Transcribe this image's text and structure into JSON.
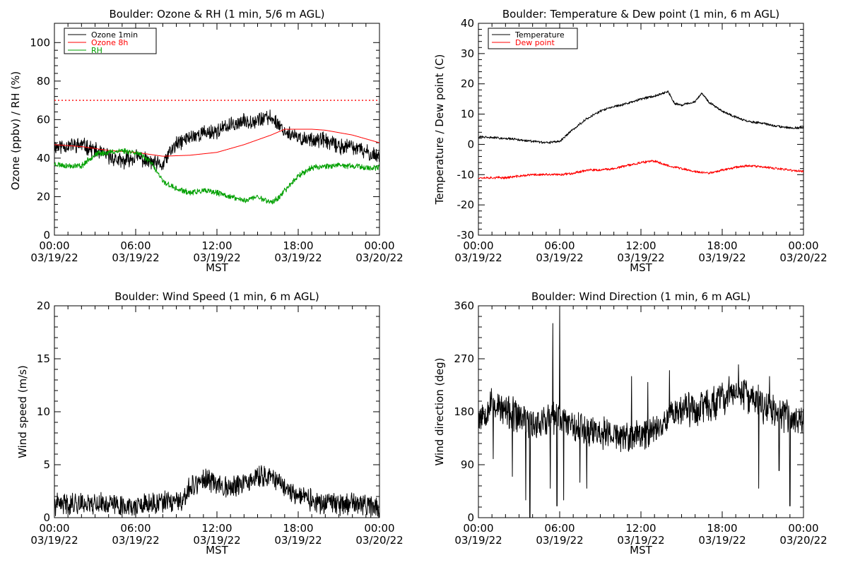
{
  "chart_data": [
    {
      "id": "ozone",
      "type": "line",
      "title": "Boulder: Ozone & RH (1 min, 5/6 m AGL)",
      "xlabel": "MST",
      "ylabel": "Ozone (ppbv) / RH (%)",
      "xlim": [
        "03/19/22 00:00",
        "03/20/22 00:00"
      ],
      "ylim": [
        0,
        110
      ],
      "yticks": [
        0,
        20,
        40,
        60,
        80,
        100
      ],
      "xticks": [
        {
          "time": "00:00",
          "date": "03/19/22"
        },
        {
          "time": "06:00",
          "date": "03/19/22"
        },
        {
          "time": "12:00",
          "date": "03/19/22"
        },
        {
          "time": "18:00",
          "date": "03/19/22"
        },
        {
          "time": "00:00",
          "date": "03/20/22"
        }
      ],
      "legend_position": "top-left",
      "reference_lines": [
        {
          "y": 70,
          "color": "#ff0000",
          "style": "dotted"
        }
      ],
      "series": [
        {
          "name": "Ozone 1min",
          "color": "#000000",
          "noise": 3.5,
          "seed": 11,
          "points": [
            [
              0,
              46
            ],
            [
              2,
              47
            ],
            [
              3,
              44
            ],
            [
              4,
              41
            ],
            [
              5,
              38
            ],
            [
              6,
              41
            ],
            [
              7,
              38
            ],
            [
              8,
              36
            ],
            [
              8.5,
              43
            ],
            [
              9,
              47
            ],
            [
              10,
              51
            ],
            [
              11,
              53
            ],
            [
              12,
              54
            ],
            [
              13,
              57
            ],
            [
              14,
              59
            ],
            [
              15,
              60
            ],
            [
              16,
              61
            ],
            [
              16.5,
              58
            ],
            [
              17,
              54
            ],
            [
              18,
              50
            ],
            [
              19,
              50
            ],
            [
              20,
              49
            ],
            [
              21,
              46
            ],
            [
              22,
              46
            ],
            [
              23,
              43
            ],
            [
              24,
              41
            ]
          ]
        },
        {
          "name": "Ozone 8h",
          "color": "#ff0000",
          "noise": 0,
          "seed": 1,
          "points": [
            [
              0,
              47
            ],
            [
              2,
              46
            ],
            [
              4,
              44
            ],
            [
              6,
              43
            ],
            [
              8,
              41
            ],
            [
              10,
              41.5
            ],
            [
              12,
              43
            ],
            [
              14,
              47
            ],
            [
              16,
              52
            ],
            [
              17,
              55
            ],
            [
              18,
              55
            ],
            [
              19,
              55
            ],
            [
              20,
              54.5
            ],
            [
              22,
              52
            ],
            [
              24,
              48
            ]
          ]
        },
        {
          "name": "RH",
          "color": "#00a000",
          "noise": 1.3,
          "seed": 23,
          "points": [
            [
              0,
              37
            ],
            [
              1,
              36
            ],
            [
              2,
              36
            ],
            [
              3,
              42
            ],
            [
              4,
              43
            ],
            [
              5,
              44
            ],
            [
              6,
              43
            ],
            [
              7,
              39
            ],
            [
              8,
              28
            ],
            [
              9,
              24
            ],
            [
              10,
              22
            ],
            [
              11,
              23
            ],
            [
              12,
              22
            ],
            [
              13,
              20
            ],
            [
              14,
              18
            ],
            [
              15,
              20
            ],
            [
              16,
              17
            ],
            [
              16.5,
              19
            ],
            [
              17,
              23
            ],
            [
              18,
              31
            ],
            [
              19,
              35
            ],
            [
              20,
              36
            ],
            [
              21,
              36
            ],
            [
              22,
              36
            ],
            [
              23,
              35
            ],
            [
              24,
              35
            ]
          ]
        }
      ]
    },
    {
      "id": "temperature",
      "type": "line",
      "title": "Boulder: Temperature & Dew point (1 min, 6 m AGL)",
      "xlabel": "MST",
      "ylabel": "Temperature / Dew point (C)",
      "xlim": [
        "03/19/22 00:00",
        "03/20/22 00:00"
      ],
      "ylim": [
        -30,
        40
      ],
      "yticks": [
        -30,
        -20,
        -10,
        0,
        10,
        20,
        30,
        40
      ],
      "xticks": [
        {
          "time": "00:00",
          "date": "03/19/22"
        },
        {
          "time": "06:00",
          "date": "03/19/22"
        },
        {
          "time": "12:00",
          "date": "03/19/22"
        },
        {
          "time": "18:00",
          "date": "03/19/22"
        },
        {
          "time": "00:00",
          "date": "03/20/22"
        }
      ],
      "legend_position": "top-left",
      "reference_lines": [],
      "series": [
        {
          "name": "Temperature",
          "color": "#000000",
          "noise": 0.35,
          "seed": 31,
          "points": [
            [
              0,
              2.5
            ],
            [
              2,
              2
            ],
            [
              4,
              1
            ],
            [
              5,
              0.5
            ],
            [
              6,
              1
            ],
            [
              7,
              5
            ],
            [
              8,
              8.5
            ],
            [
              9,
              11
            ],
            [
              10,
              12.5
            ],
            [
              11,
              13.5
            ],
            [
              12,
              15
            ],
            [
              13,
              16
            ],
            [
              14,
              17.5
            ],
            [
              14.5,
              13.5
            ],
            [
              15,
              13
            ],
            [
              16,
              14
            ],
            [
              16.5,
              17
            ],
            [
              17,
              14
            ],
            [
              18,
              11
            ],
            [
              19,
              9
            ],
            [
              20,
              7.5
            ],
            [
              21,
              7
            ],
            [
              22,
              6
            ],
            [
              23,
              5.5
            ],
            [
              24,
              5.5
            ]
          ]
        },
        {
          "name": "Dew point",
          "color": "#ff0000",
          "noise": 0.35,
          "seed": 37,
          "points": [
            [
              0,
              -11
            ],
            [
              1,
              -11
            ],
            [
              2,
              -11
            ],
            [
              3,
              -10.5
            ],
            [
              4,
              -10
            ],
            [
              5,
              -10
            ],
            [
              6,
              -10
            ],
            [
              7,
              -9.5
            ],
            [
              8,
              -8.5
            ],
            [
              9,
              -8.5
            ],
            [
              10,
              -8
            ],
            [
              11,
              -7
            ],
            [
              12,
              -6
            ],
            [
              13,
              -5.5
            ],
            [
              14,
              -7
            ],
            [
              15,
              -8
            ],
            [
              16,
              -9
            ],
            [
              17,
              -9.5
            ],
            [
              18,
              -8.5
            ],
            [
              19,
              -7.5
            ],
            [
              20,
              -7
            ],
            [
              21,
              -7.5
            ],
            [
              22,
              -8
            ],
            [
              23,
              -8.5
            ],
            [
              24,
              -9
            ]
          ]
        }
      ]
    },
    {
      "id": "windspeed",
      "type": "line",
      "title": "Boulder: Wind Speed (1 min, 6 m AGL)",
      "xlabel": "MST",
      "ylabel": "Wind speed (m/s)",
      "xlim": [
        "03/19/22 00:00",
        "03/20/22 00:00"
      ],
      "ylim": [
        0,
        20
      ],
      "yticks": [
        0,
        5,
        10,
        15,
        20
      ],
      "xticks": [
        {
          "time": "00:00",
          "date": "03/19/22"
        },
        {
          "time": "06:00",
          "date": "03/19/22"
        },
        {
          "time": "12:00",
          "date": "03/19/22"
        },
        {
          "time": "18:00",
          "date": "03/19/22"
        },
        {
          "time": "00:00",
          "date": "03/20/22"
        }
      ],
      "legend_position": "none",
      "reference_lines": [],
      "series": [
        {
          "name": "",
          "color": "#000000",
          "noise": 0.9,
          "seed": 41,
          "clip_min": 0,
          "points": [
            [
              0,
              1.2
            ],
            [
              2,
              1.4
            ],
            [
              4,
              1.3
            ],
            [
              6,
              1
            ],
            [
              8,
              1.4
            ],
            [
              9,
              1.5
            ],
            [
              9.5,
              1.2
            ],
            [
              10,
              3
            ],
            [
              11,
              3.5
            ],
            [
              12,
              3.3
            ],
            [
              13,
              2.8
            ],
            [
              14,
              3.2
            ],
            [
              15,
              3.8
            ],
            [
              16,
              4
            ],
            [
              17,
              2.8
            ],
            [
              18,
              2.2
            ],
            [
              19,
              1.6
            ],
            [
              20,
              1.2
            ],
            [
              22,
              1.3
            ],
            [
              24,
              1
            ]
          ]
        }
      ]
    },
    {
      "id": "winddir",
      "type": "line",
      "title": "Boulder: Wind Direction (1 min, 6 m AGL)",
      "xlabel": "MST",
      "ylabel": "Wind direction (deg)",
      "xlim": [
        "03/19/22 00:00",
        "03/20/22 00:00"
      ],
      "ylim": [
        0,
        360
      ],
      "yticks": [
        0,
        90,
        180,
        270,
        360
      ],
      "xticks": [
        {
          "time": "00:00",
          "date": "03/19/22"
        },
        {
          "time": "06:00",
          "date": "03/19/22"
        },
        {
          "time": "12:00",
          "date": "03/19/22"
        },
        {
          "time": "18:00",
          "date": "03/19/22"
        },
        {
          "time": "00:00",
          "date": "03/20/22"
        }
      ],
      "legend_position": "none",
      "reference_lines": [],
      "series": [
        {
          "name": "",
          "color": "#000000",
          "noise": 25,
          "seed": 53,
          "clip_min": 0,
          "clip_max": 360,
          "spikes": [
            [
              1.1,
              100
            ],
            [
              2.5,
              70
            ],
            [
              3.5,
              30
            ],
            [
              3.8,
              0
            ],
            [
              5.3,
              50
            ],
            [
              5.5,
              330
            ],
            [
              5.8,
              20
            ],
            [
              6,
              360
            ],
            [
              6.3,
              30
            ],
            [
              7.5,
              60
            ],
            [
              8,
              50
            ],
            [
              11.3,
              240
            ],
            [
              12.5,
              230
            ],
            [
              14.1,
              250
            ],
            [
              16.5,
              210
            ],
            [
              18.5,
              240
            ],
            [
              19.2,
              260
            ],
            [
              20.7,
              50
            ],
            [
              21.5,
              240
            ],
            [
              22.2,
              80
            ],
            [
              23,
              20
            ]
          ],
          "points": [
            [
              0,
              170
            ],
            [
              1,
              195
            ],
            [
              2,
              180
            ],
            [
              3,
              170
            ],
            [
              4,
              160
            ],
            [
              5,
              165
            ],
            [
              6,
              170
            ],
            [
              7,
              160
            ],
            [
              8,
              150
            ],
            [
              9,
              145
            ],
            [
              10,
              140
            ],
            [
              11,
              135
            ],
            [
              12,
              140
            ],
            [
              13,
              150
            ],
            [
              14,
              175
            ],
            [
              15,
              185
            ],
            [
              16,
              185
            ],
            [
              17,
              190
            ],
            [
              18,
              200
            ],
            [
              19,
              215
            ],
            [
              20,
              205
            ],
            [
              21,
              190
            ],
            [
              22,
              180
            ],
            [
              23,
              170
            ],
            [
              24,
              165
            ]
          ]
        }
      ]
    }
  ]
}
